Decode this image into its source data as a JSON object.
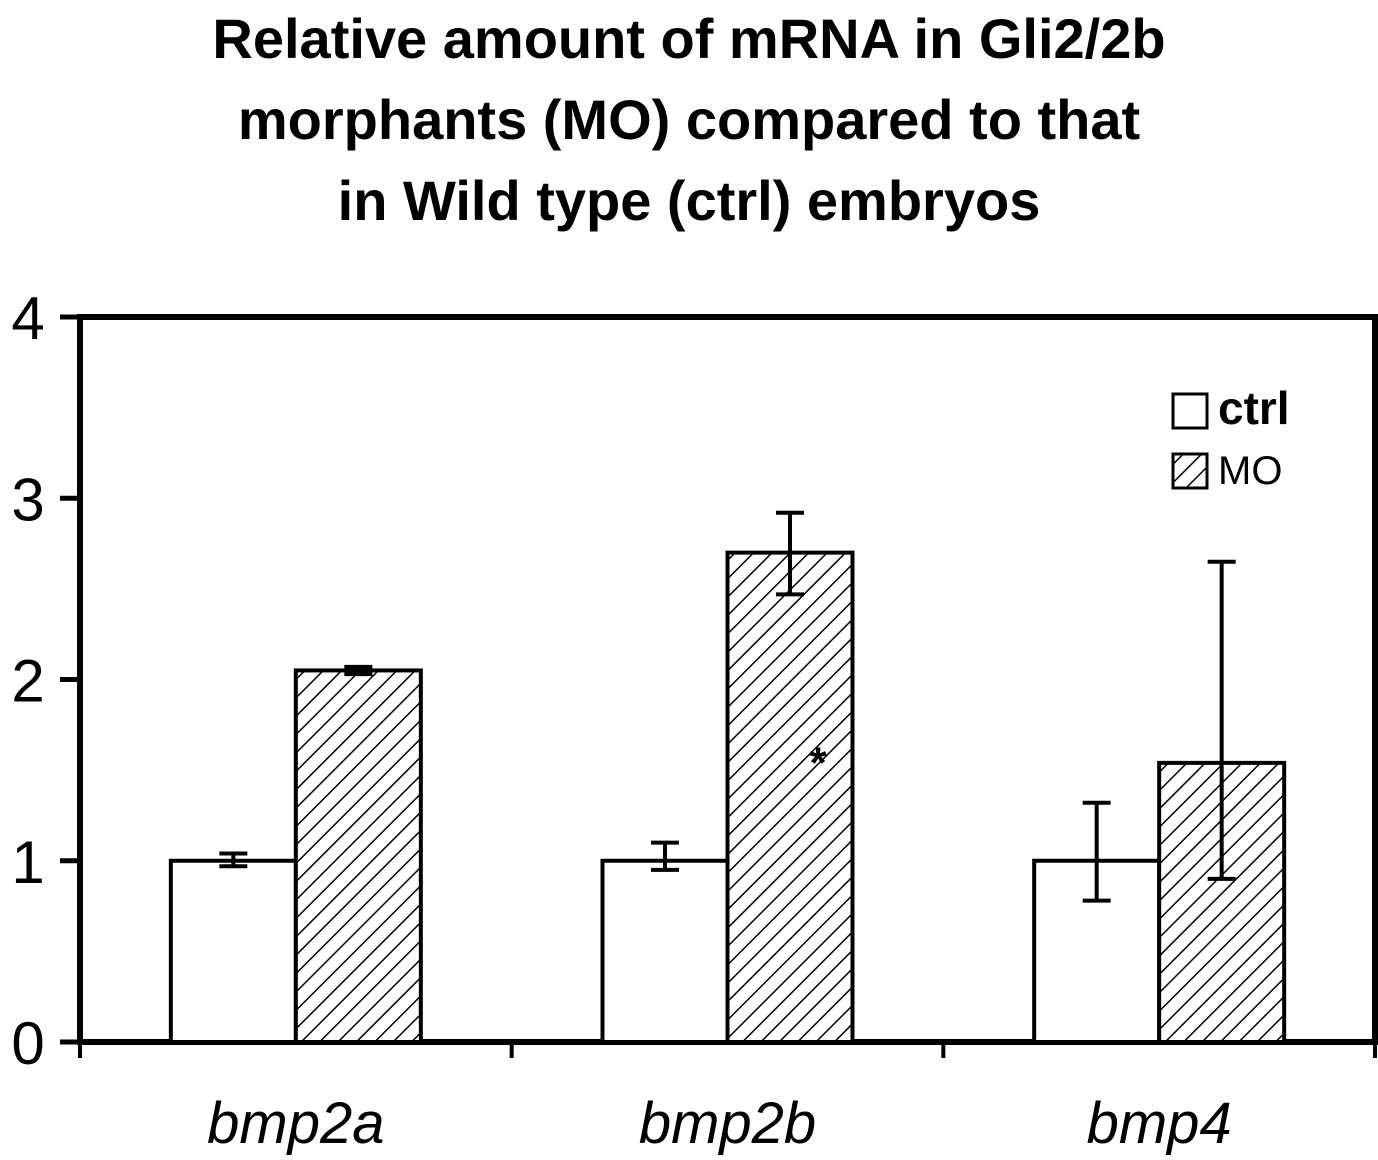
{
  "chart_data": {
    "type": "bar",
    "title_lines": [
      "Relative amount of mRNA in Gli2/2b",
      "morphants (MO) compared to that",
      "in Wild type (ctrl) embryos"
    ],
    "categories": [
      "bmp2a",
      "bmp2b",
      "bmp4"
    ],
    "series": [
      {
        "name": "ctrl",
        "values": [
          1.0,
          1.0,
          1.0
        ],
        "error_low": [
          0.97,
          0.95,
          0.78
        ],
        "error_high": [
          1.04,
          1.1,
          1.32
        ],
        "pattern": "none"
      },
      {
        "name": "MO",
        "values": [
          2.05,
          2.7,
          1.54
        ],
        "error_low": [
          2.03,
          2.47,
          0.9
        ],
        "error_high": [
          2.07,
          2.92,
          2.65
        ],
        "pattern": "hatched"
      }
    ],
    "yticks": [
      0,
      1,
      2,
      3,
      4
    ],
    "ylim": [
      0,
      4
    ],
    "xlabel": "",
    "ylabel": "",
    "grid": false,
    "legend_position": "top-right",
    "annotations": [
      "*"
    ]
  }
}
